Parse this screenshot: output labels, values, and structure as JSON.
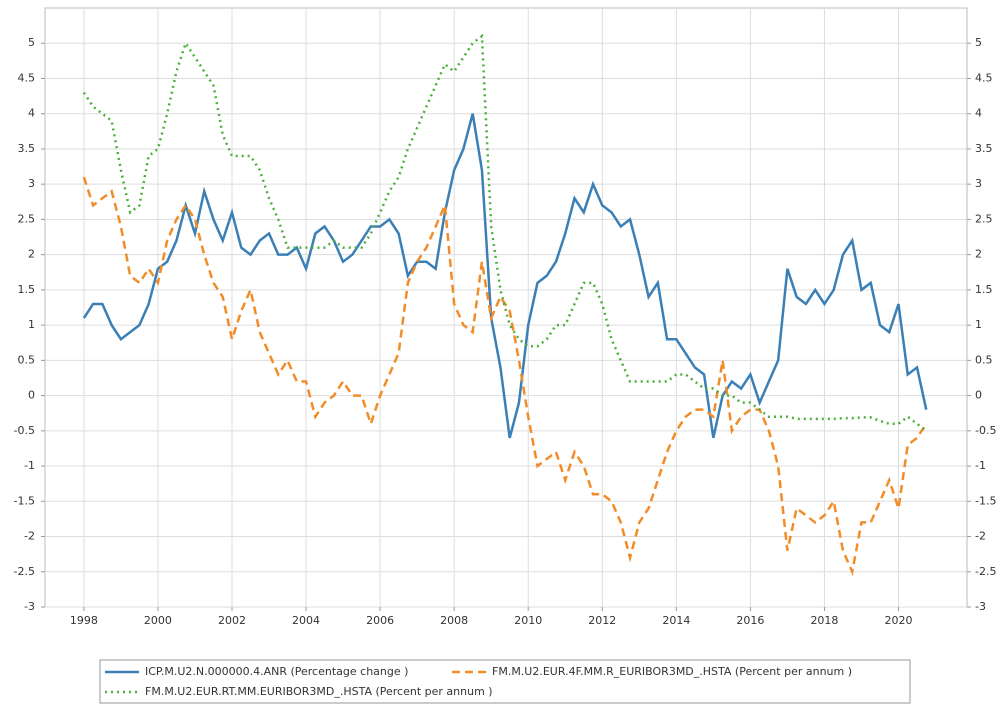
{
  "chart_data": {
    "type": "line",
    "x": [
      1998,
      1998.25,
      1998.5,
      1998.75,
      1999,
      1999.25,
      1999.5,
      1999.75,
      2000,
      2000.25,
      2000.5,
      2000.75,
      2001,
      2001.25,
      2001.5,
      2001.75,
      2002,
      2002.25,
      2002.5,
      2002.75,
      2003,
      2003.25,
      2003.5,
      2003.75,
      2004,
      2004.25,
      2004.5,
      2004.75,
      2005,
      2005.25,
      2005.5,
      2005.75,
      2006,
      2006.25,
      2006.5,
      2006.75,
      2007,
      2007.25,
      2007.5,
      2007.75,
      2008,
      2008.25,
      2008.5,
      2008.75,
      2009,
      2009.25,
      2009.5,
      2009.75,
      2010,
      2010.25,
      2010.5,
      2010.75,
      2011,
      2011.25,
      2011.5,
      2011.75,
      2012,
      2012.25,
      2012.5,
      2012.75,
      2013,
      2013.25,
      2013.5,
      2013.75,
      2014,
      2014.25,
      2014.5,
      2014.75,
      2015,
      2015.25,
      2015.5,
      2015.75,
      2016,
      2016.25,
      2016.5,
      2016.75,
      2017,
      2017.25,
      2017.5,
      2017.75,
      2018,
      2018.25,
      2018.5,
      2018.75,
      2019,
      2019.25,
      2019.5,
      2019.75,
      2020,
      2020.25,
      2020.5,
      2020.75
    ],
    "series": [
      {
        "name": "ICP.M.U2.N.000000.4.ANR (Percentage change )",
        "color": "#3a7fb5",
        "style": "solid",
        "values": [
          1.1,
          1.3,
          1.3,
          1.0,
          0.8,
          0.9,
          1.0,
          1.3,
          1.8,
          1.9,
          2.2,
          2.7,
          2.3,
          2.9,
          2.5,
          2.2,
          2.6,
          2.1,
          2.0,
          2.2,
          2.3,
          2.0,
          2.0,
          2.1,
          1.8,
          2.3,
          2.4,
          2.2,
          1.9,
          2.0,
          2.2,
          2.4,
          2.4,
          2.5,
          2.3,
          1.7,
          1.9,
          1.9,
          1.8,
          2.6,
          3.2,
          3.5,
          4.0,
          3.2,
          1.1,
          0.4,
          -0.6,
          -0.1,
          1.0,
          1.6,
          1.7,
          1.9,
          2.3,
          2.8,
          2.6,
          3.0,
          2.7,
          2.6,
          2.4,
          2.5,
          2.0,
          1.4,
          1.6,
          0.8,
          0.8,
          0.6,
          0.4,
          0.3,
          -0.6,
          0.0,
          0.2,
          0.1,
          0.3,
          -0.1,
          0.2,
          0.5,
          1.8,
          1.4,
          1.3,
          1.5,
          1.3,
          1.5,
          2.0,
          2.2,
          1.5,
          1.6,
          1.0,
          0.9,
          1.3,
          0.3,
          0.4,
          -0.2
        ]
      },
      {
        "name": "FM.M.U2.EUR.4F.MM.R_EURIBOR3MD_.HSTA (Percent per annum )",
        "color": "#f28c28",
        "style": "dashed",
        "values": [
          3.1,
          2.7,
          2.8,
          2.9,
          2.4,
          1.7,
          1.6,
          1.8,
          1.6,
          2.2,
          2.5,
          2.7,
          2.5,
          2.0,
          1.6,
          1.4,
          0.8,
          1.2,
          1.5,
          0.9,
          0.6,
          0.3,
          0.5,
          0.2,
          0.2,
          -0.3,
          -0.1,
          0.0,
          0.2,
          0.0,
          0.0,
          -0.4,
          0.0,
          0.3,
          0.6,
          1.6,
          1.9,
          2.1,
          2.4,
          2.7,
          1.3,
          1.0,
          0.9,
          1.9,
          1.1,
          1.4,
          1.2,
          0.5,
          -0.3,
          -1.0,
          -0.9,
          -0.8,
          -1.2,
          -0.8,
          -1.0,
          -1.4,
          -1.4,
          -1.5,
          -1.8,
          -2.3,
          -1.8,
          -1.6,
          -1.2,
          -0.8,
          -0.5,
          -0.3,
          -0.2,
          -0.2,
          -0.3,
          0.5,
          -0.5,
          -0.3,
          -0.2,
          -0.2,
          -0.5,
          -1.0,
          -2.2,
          -1.6,
          -1.7,
          -1.8,
          -1.7,
          -1.5,
          -2.2,
          -2.5,
          -1.8,
          -1.8,
          -1.5,
          -1.2,
          -1.6,
          -0.7,
          -0.6,
          -0.4
        ]
      },
      {
        "name": "FM.M.U2.EUR.RT.MM.EURIBOR3MD_.HSTA (Percent per annum )",
        "color": "#4caf3c",
        "style": "dotted",
        "values": [
          4.3,
          4.1,
          4.0,
          3.9,
          3.2,
          2.6,
          2.7,
          3.4,
          3.5,
          4.0,
          4.6,
          5.0,
          4.8,
          4.6,
          4.4,
          3.7,
          3.4,
          3.4,
          3.4,
          3.2,
          2.8,
          2.5,
          2.1,
          2.1,
          2.1,
          2.1,
          2.1,
          2.2,
          2.1,
          2.1,
          2.1,
          2.3,
          2.6,
          2.9,
          3.1,
          3.5,
          3.8,
          4.1,
          4.4,
          4.7,
          4.6,
          4.8,
          5.0,
          5.1,
          2.4,
          1.5,
          1.0,
          0.8,
          0.7,
          0.7,
          0.8,
          1.0,
          1.0,
          1.3,
          1.6,
          1.6,
          1.3,
          0.8,
          0.5,
          0.2,
          0.2,
          0.2,
          0.2,
          0.2,
          0.3,
          0.3,
          0.2,
          0.1,
          0.1,
          0.0,
          0.0,
          -0.1,
          -0.1,
          -0.2,
          -0.3,
          -0.3,
          -0.3,
          -0.33,
          -0.33,
          -0.33,
          -0.33,
          -0.33,
          -0.32,
          -0.32,
          -0.31,
          -0.31,
          -0.36,
          -0.4,
          -0.4,
          -0.3,
          -0.4,
          -0.5
        ]
      }
    ],
    "xlim": [
      1996.95,
      2021.85
    ],
    "xticks": [
      1998,
      2000,
      2002,
      2004,
      2006,
      2008,
      2010,
      2012,
      2014,
      2016,
      2018,
      2020
    ],
    "ylim": [
      -3,
      5.5
    ],
    "yticks": [
      -3,
      -2.5,
      -2,
      -1.5,
      -1,
      -0.5,
      0,
      0.5,
      1,
      1.5,
      2,
      2.5,
      3,
      3.5,
      4,
      4.5,
      5
    ],
    "y2lim": [
      -3,
      5.5
    ],
    "y2ticks": [
      -3,
      -2.5,
      -2,
      -1.5,
      -1,
      -0.5,
      0,
      0.5,
      1,
      1.5,
      2,
      2.5,
      3,
      3.5,
      4,
      4.5,
      5
    ],
    "grid": true,
    "legend": "bottom"
  }
}
